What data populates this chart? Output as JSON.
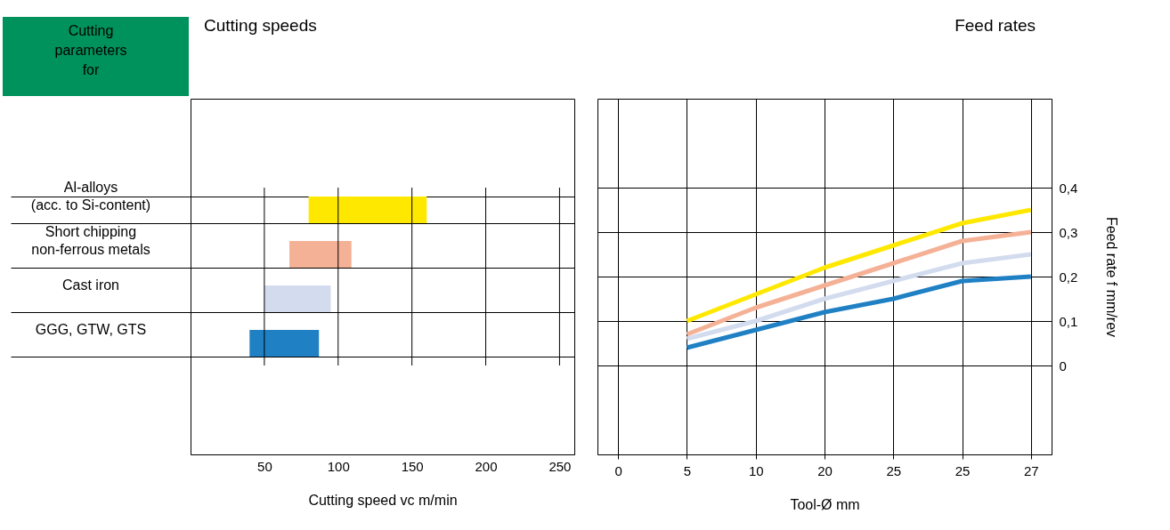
{
  "chart_data": [
    {
      "type": "bar",
      "orientation": "horizontal",
      "title": "Cutting speeds",
      "ylabel": "Cutting\nparameters\nfor",
      "xlabel": "Cutting speed vc m/min",
      "categories": [
        "Al-alloys\n(acc. to Si-content)",
        "Short chipping\nnon-ferrous metals",
        "Cast iron",
        "GGG, GTW, GTS"
      ],
      "base": [
        80,
        67,
        50,
        40
      ],
      "values": [
        80,
        42,
        45,
        47
      ],
      "colors": [
        "#ffe800",
        "#f4b196",
        "#d3dcee",
        "#1f80c4"
      ],
      "xlim": [
        0,
        260
      ],
      "xticks": [
        50,
        100,
        150,
        200,
        250
      ],
      "grid": true
    },
    {
      "type": "line",
      "title": "Feed rates",
      "xlabel": "Tool-Ø mm",
      "ylabel": "Feed rate f mm/rev",
      "categories": [
        "0",
        "5",
        "10",
        "20",
        "25",
        "25",
        "27"
      ],
      "ylim": [
        -0.2,
        0.6
      ],
      "yticks": [
        0,
        {
          "value": 0.1,
          "label": "0,1"
        },
        {
          "value": 0.2,
          "label": "0,2"
        },
        {
          "value": 0.3,
          "label": "0,3"
        },
        {
          "value": 0.4,
          "label": "0,4"
        }
      ],
      "grid": true,
      "series": [
        {
          "color": "#ffe800",
          "values": [
            null,
            0.1,
            0.16,
            0.22,
            0.27,
            0.32,
            0.35
          ]
        },
        {
          "color": "#f4b196",
          "values": [
            null,
            0.07,
            0.13,
            0.18,
            0.23,
            0.28,
            0.3
          ]
        },
        {
          "color": "#d3dcee",
          "values": [
            null,
            0.06,
            0.1,
            0.15,
            0.19,
            0.23,
            0.25
          ]
        },
        {
          "color": "#1f80c4",
          "values": [
            null,
            0.04,
            0.08,
            0.12,
            0.15,
            0.19,
            0.2
          ]
        }
      ]
    }
  ]
}
